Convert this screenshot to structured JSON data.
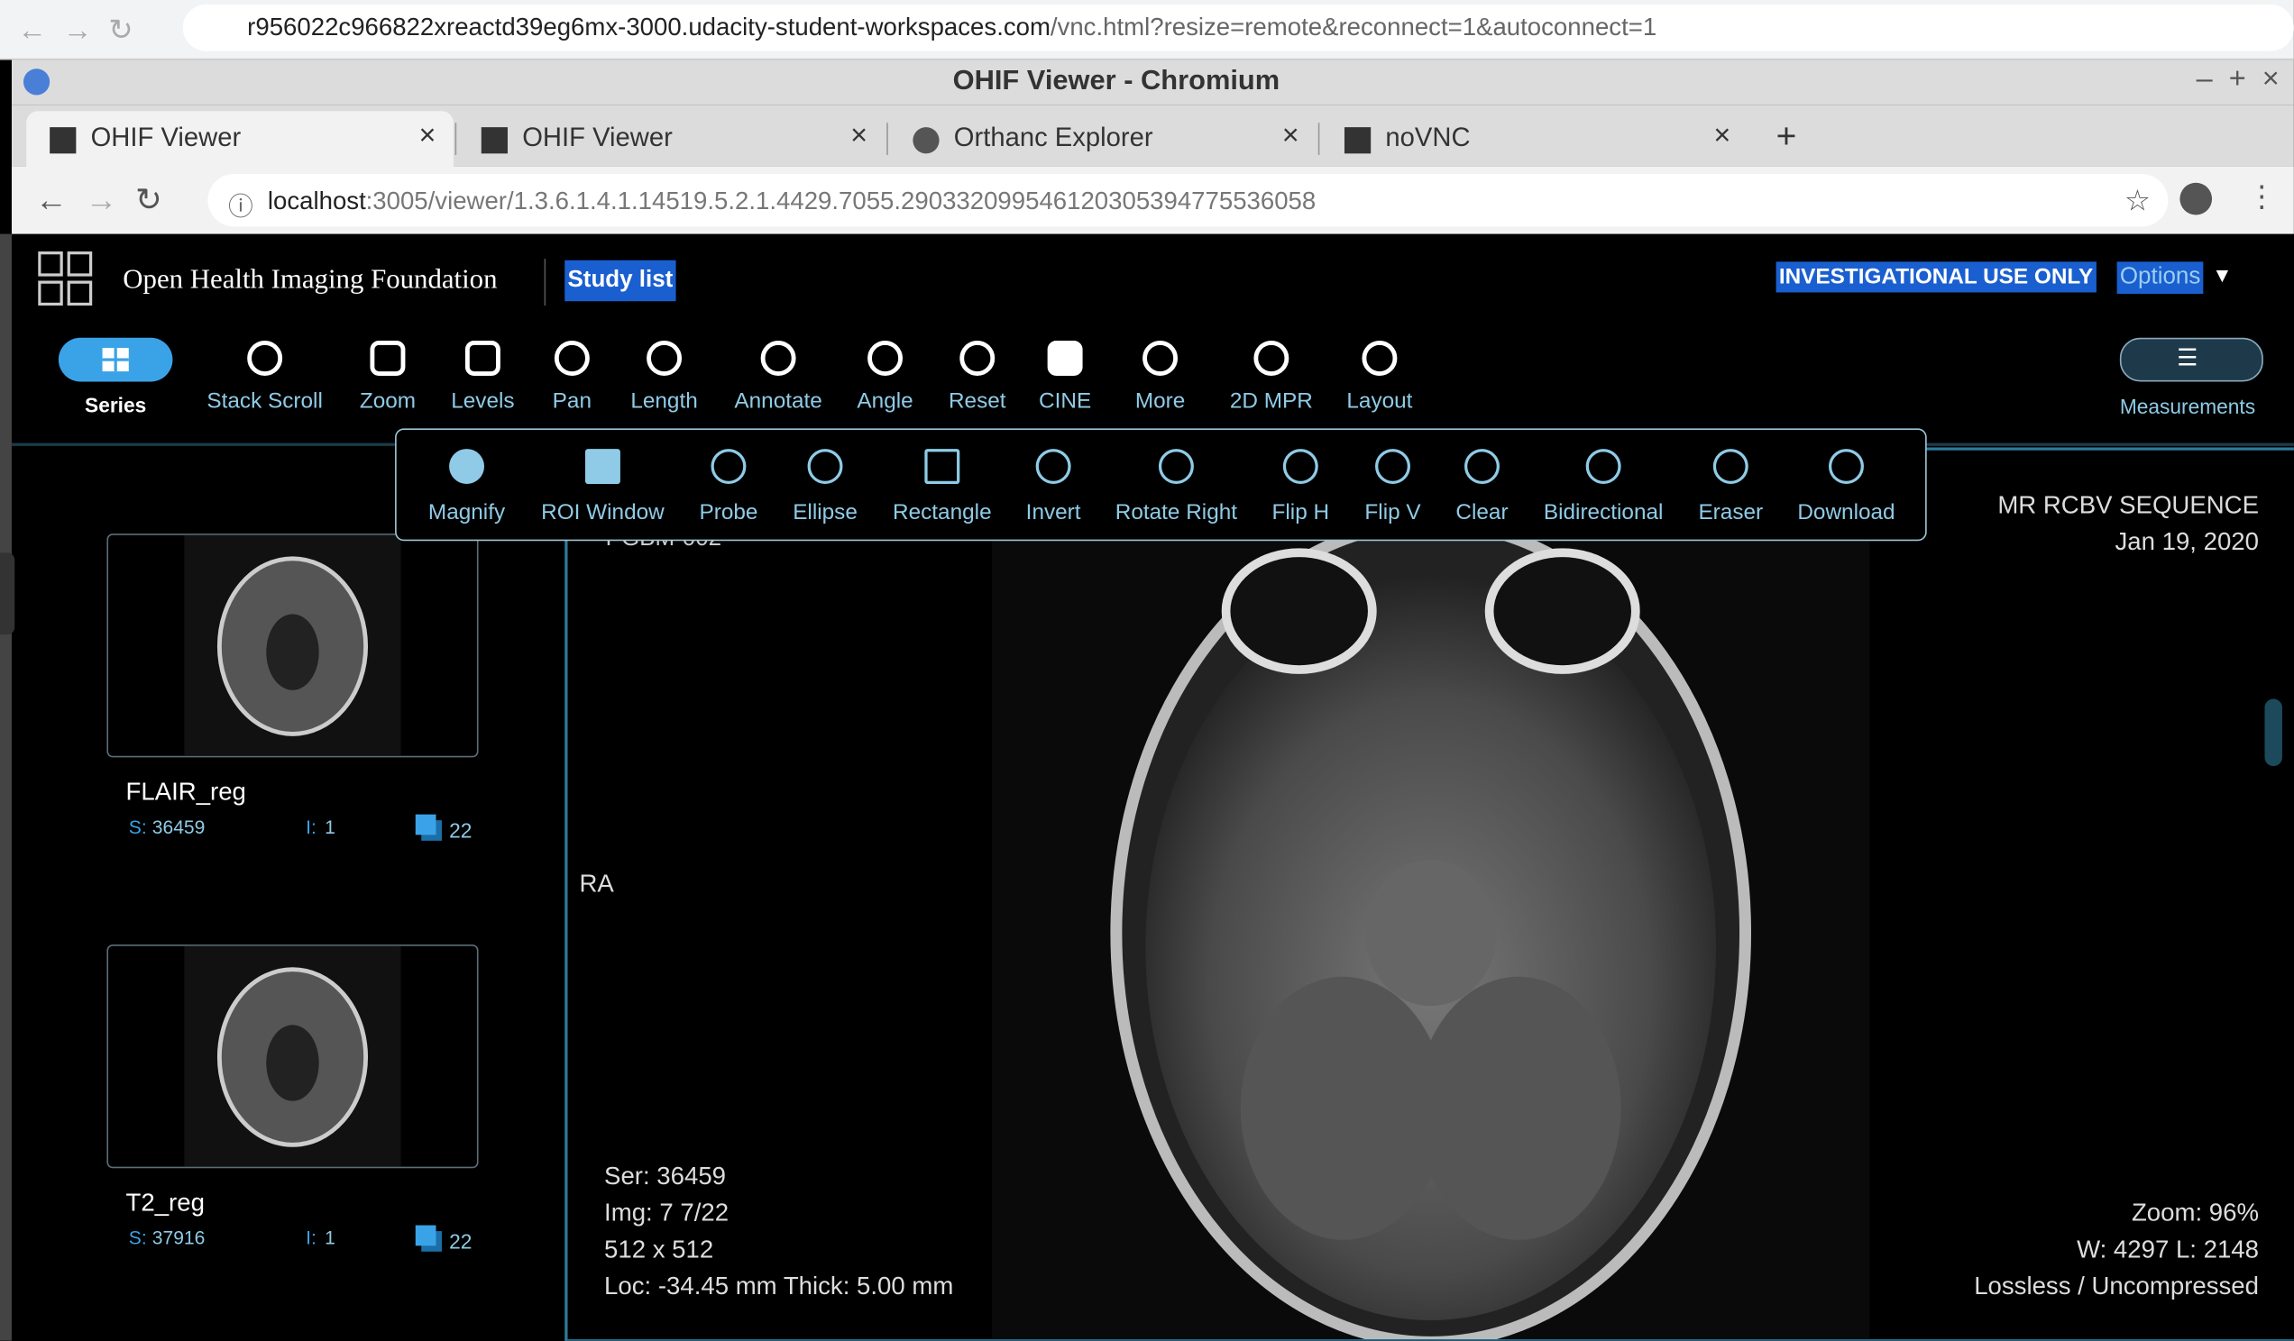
{
  "outer_browser": {
    "url_host": "r956022c966822xreactd39eg6mx-3000.udacity-student-workspaces.com",
    "url_path": "/vnc.html?resize=remote&reconnect=1&autoconnect=1"
  },
  "window_title": "OHIF Viewer - Chromium",
  "tabs": [
    "OHIF Viewer",
    "OHIF Viewer",
    "Orthanc Explorer",
    "noVNC"
  ],
  "address": {
    "host": "localhost",
    "path": ":3005/viewer/1.3.6.1.4.1.14519.5.2.1.4429.7055.290332099546120305394775536058"
  },
  "header": {
    "brand": "Open Health Imaging Foundation",
    "study_list": "Study list",
    "notice": "INVESTIGATIONAL USE ONLY",
    "options": "Options"
  },
  "toolbar": [
    "Series",
    "Stack Scroll",
    "Zoom",
    "Levels",
    "Pan",
    "Length",
    "Annotate",
    "Angle",
    "Reset",
    "CINE",
    "More",
    "2D MPR",
    "Layout"
  ],
  "measurements": "Measurements",
  "more_menu": [
    "Magnify",
    "ROI Window",
    "Probe",
    "Ellipse",
    "Rectangle",
    "Invert",
    "Rotate Right",
    "Flip H",
    "Flip V",
    "Clear",
    "Bidirectional",
    "Eraser",
    "Download"
  ],
  "series": [
    {
      "name": "FLAIR_reg",
      "s_label": "S:",
      "s": "36459",
      "i_label": "I:",
      "i": "1",
      "count": "22"
    },
    {
      "name": "T2_reg",
      "s_label": "S:",
      "s": "37916",
      "i_label": "I:",
      "i": "1",
      "count": "22"
    }
  ],
  "viewport": {
    "top_left": "PGBM-002",
    "top_right": [
      "MR RCBV SEQUENCE",
      "Jan 19, 2020"
    ],
    "left_marker": "RA",
    "bottom_left": [
      "Ser: 36459",
      "Img: 7 7/22",
      "512 x 512",
      "Loc: -34.45 mm Thick: 5.00 mm"
    ],
    "bottom_right": [
      "Zoom: 96%",
      "W: 4297 L: 2148",
      "Lossless / Uncompressed"
    ]
  }
}
